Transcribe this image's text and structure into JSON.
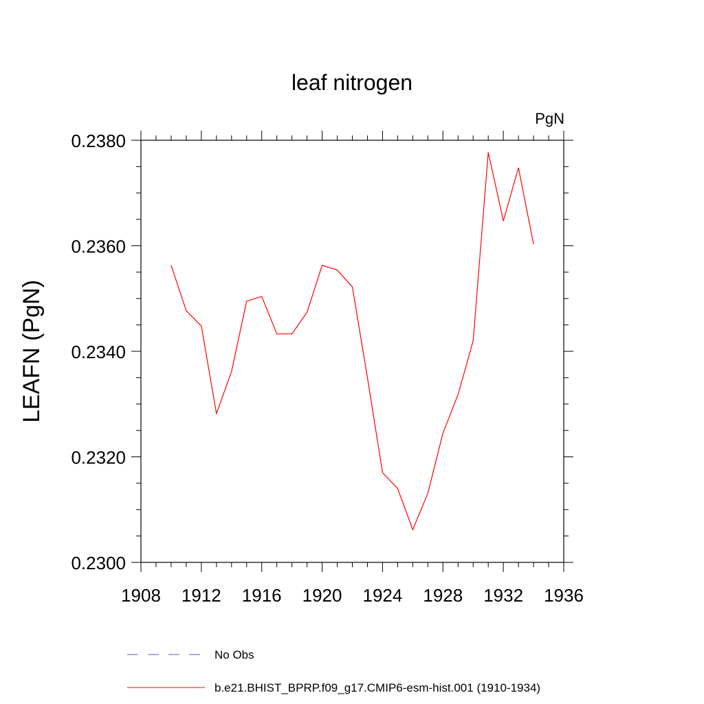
{
  "chart_data": {
    "type": "line",
    "title": "leaf nitrogen",
    "units_label": "PgN",
    "ylabel": "LEAFN  (PgN)",
    "xlabel": "",
    "xlim": [
      1908,
      1936
    ],
    "ylim": [
      0.23,
      0.238
    ],
    "x_ticks": [
      1908,
      1912,
      1916,
      1920,
      1924,
      1928,
      1932,
      1936
    ],
    "x_tick_labels": [
      "1908",
      "1912",
      "1916",
      "1920",
      "1924",
      "1928",
      "1932",
      "1936"
    ],
    "y_ticks": [
      0.23,
      0.232,
      0.234,
      0.236,
      0.238
    ],
    "y_tick_labels": [
      "0.2300",
      "0.2320",
      "0.2340",
      "0.2360",
      "0.2380"
    ],
    "grid": false,
    "legend_position": "bottom",
    "series": [
      {
        "name": "No Obs",
        "color": "#5a5ad0",
        "style": "dashed",
        "x": [],
        "values": []
      },
      {
        "name": "b.e21.BHIST_BPRP.f09_g17.CMIP6-esm-hist.001 (1910-1934)",
        "color": "#ff0000",
        "style": "solid",
        "x": [
          1910,
          1911,
          1912,
          1913,
          1914,
          1915,
          1916,
          1917,
          1918,
          1919,
          1920,
          1921,
          1922,
          1923,
          1924,
          1925,
          1926,
          1927,
          1928,
          1929,
          1930,
          1931,
          1932,
          1933,
          1934
        ],
        "values": [
          0.23563,
          0.23477,
          0.23448,
          0.23282,
          0.23362,
          0.23495,
          0.23504,
          0.23433,
          0.23433,
          0.23474,
          0.23563,
          0.23554,
          0.23522,
          0.2335,
          0.2317,
          0.2314,
          0.23062,
          0.23131,
          0.23245,
          0.23318,
          0.2342,
          0.23777,
          0.23647,
          0.23748,
          0.23603
        ]
      }
    ]
  }
}
